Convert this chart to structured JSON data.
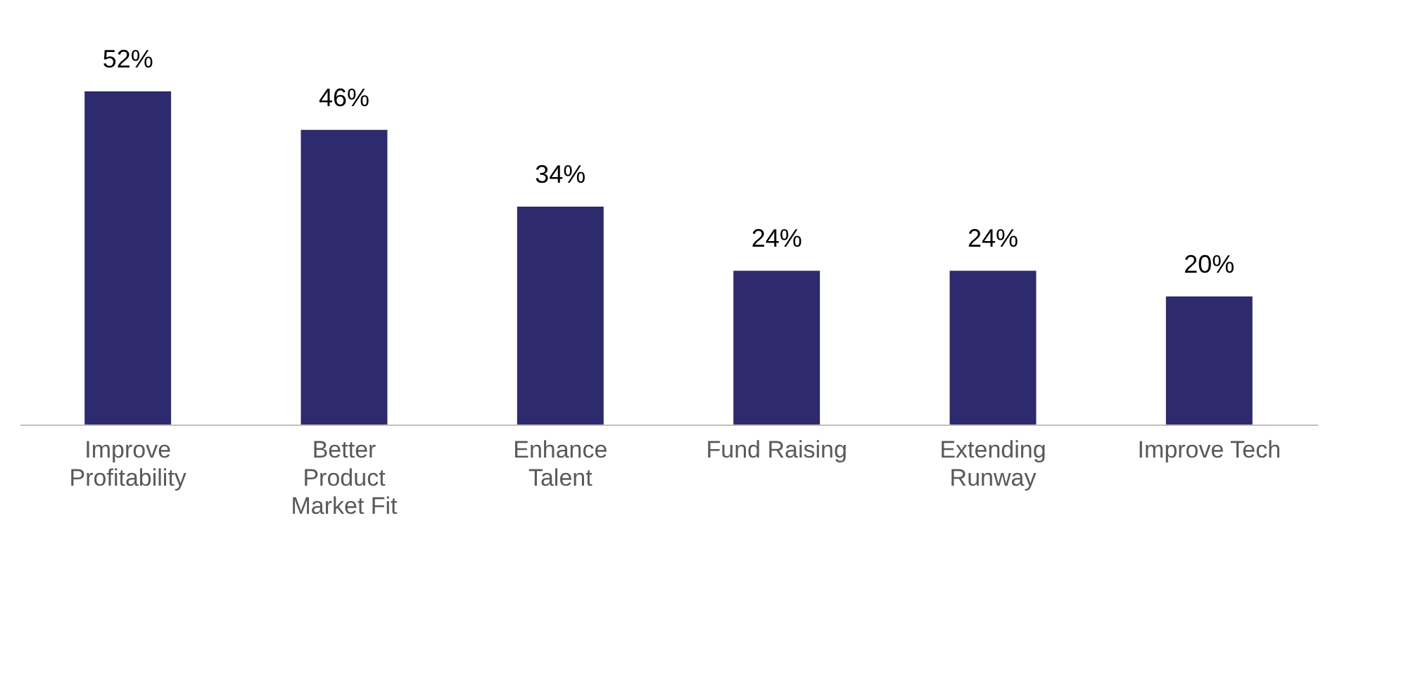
{
  "chart_data": {
    "type": "bar",
    "categories": [
      "Improve Profitability",
      "Better Product Market Fit",
      "Enhance Talent",
      "Fund Raising",
      "Extending Runway",
      "Improve Tech"
    ],
    "values": [
      52,
      46,
      34,
      24,
      24,
      20
    ],
    "value_labels": [
      "52%",
      "46%",
      "34%",
      "24%",
      "24%",
      "20%"
    ],
    "color": "#2e2a6e"
  }
}
